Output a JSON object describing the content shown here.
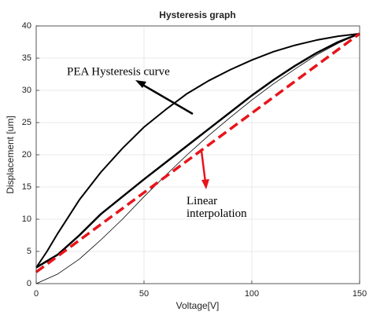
{
  "chart_data": {
    "type": "line",
    "title": "Hysteresis graph",
    "x_label": "Voltage[V]",
    "y_label": "Displacement [um]",
    "xlim": [
      0,
      150
    ],
    "xticks": [
      0,
      50,
      100,
      150
    ],
    "ylim": [
      0,
      40
    ],
    "yticks": [
      0,
      5,
      10,
      15,
      20,
      25,
      30,
      35,
      40
    ],
    "grid": true,
    "series": [
      {
        "color": "#000000",
        "width": 2,
        "x": [
          0,
          5,
          10,
          20,
          30,
          40,
          50,
          60,
          70,
          80,
          90,
          100,
          110,
          120,
          130,
          140,
          150
        ],
        "values": [
          2.5,
          5,
          7.8,
          13,
          17.3,
          21,
          24.3,
          27,
          29.5,
          31.5,
          33.2,
          34.7,
          36,
          37,
          37.8,
          38.4,
          38.8
        ]
      },
      {
        "color": "#000000",
        "width": 2.5,
        "x": [
          0,
          10,
          20,
          30,
          40,
          50,
          60,
          70,
          80,
          90,
          100,
          110,
          120,
          130,
          140,
          150
        ],
        "values": [
          2.5,
          4.5,
          7.5,
          10.8,
          13.5,
          16.2,
          18.8,
          21.4,
          24,
          26.6,
          29.2,
          31.6,
          33.8,
          35.8,
          37.5,
          38.8
        ]
      },
      {
        "color": "#000000",
        "width": 0.8,
        "x": [
          0,
          10,
          20,
          30,
          40,
          50,
          60,
          70,
          80,
          90,
          100,
          110,
          120,
          130,
          140,
          150
        ],
        "values": [
          0,
          1.5,
          3.8,
          6.8,
          10,
          13.5,
          16.8,
          20,
          23,
          25.8,
          28.5,
          31,
          33.3,
          35.5,
          37.3,
          38.8
        ]
      },
      {
        "color": "#e8141b",
        "width": 3.5,
        "dash": true,
        "x": [
          0,
          150
        ],
        "values": [
          1.8,
          38.8
        ]
      }
    ],
    "annotations": [
      "PEA Hysteresis curve",
      "Linear interpolation"
    ]
  }
}
